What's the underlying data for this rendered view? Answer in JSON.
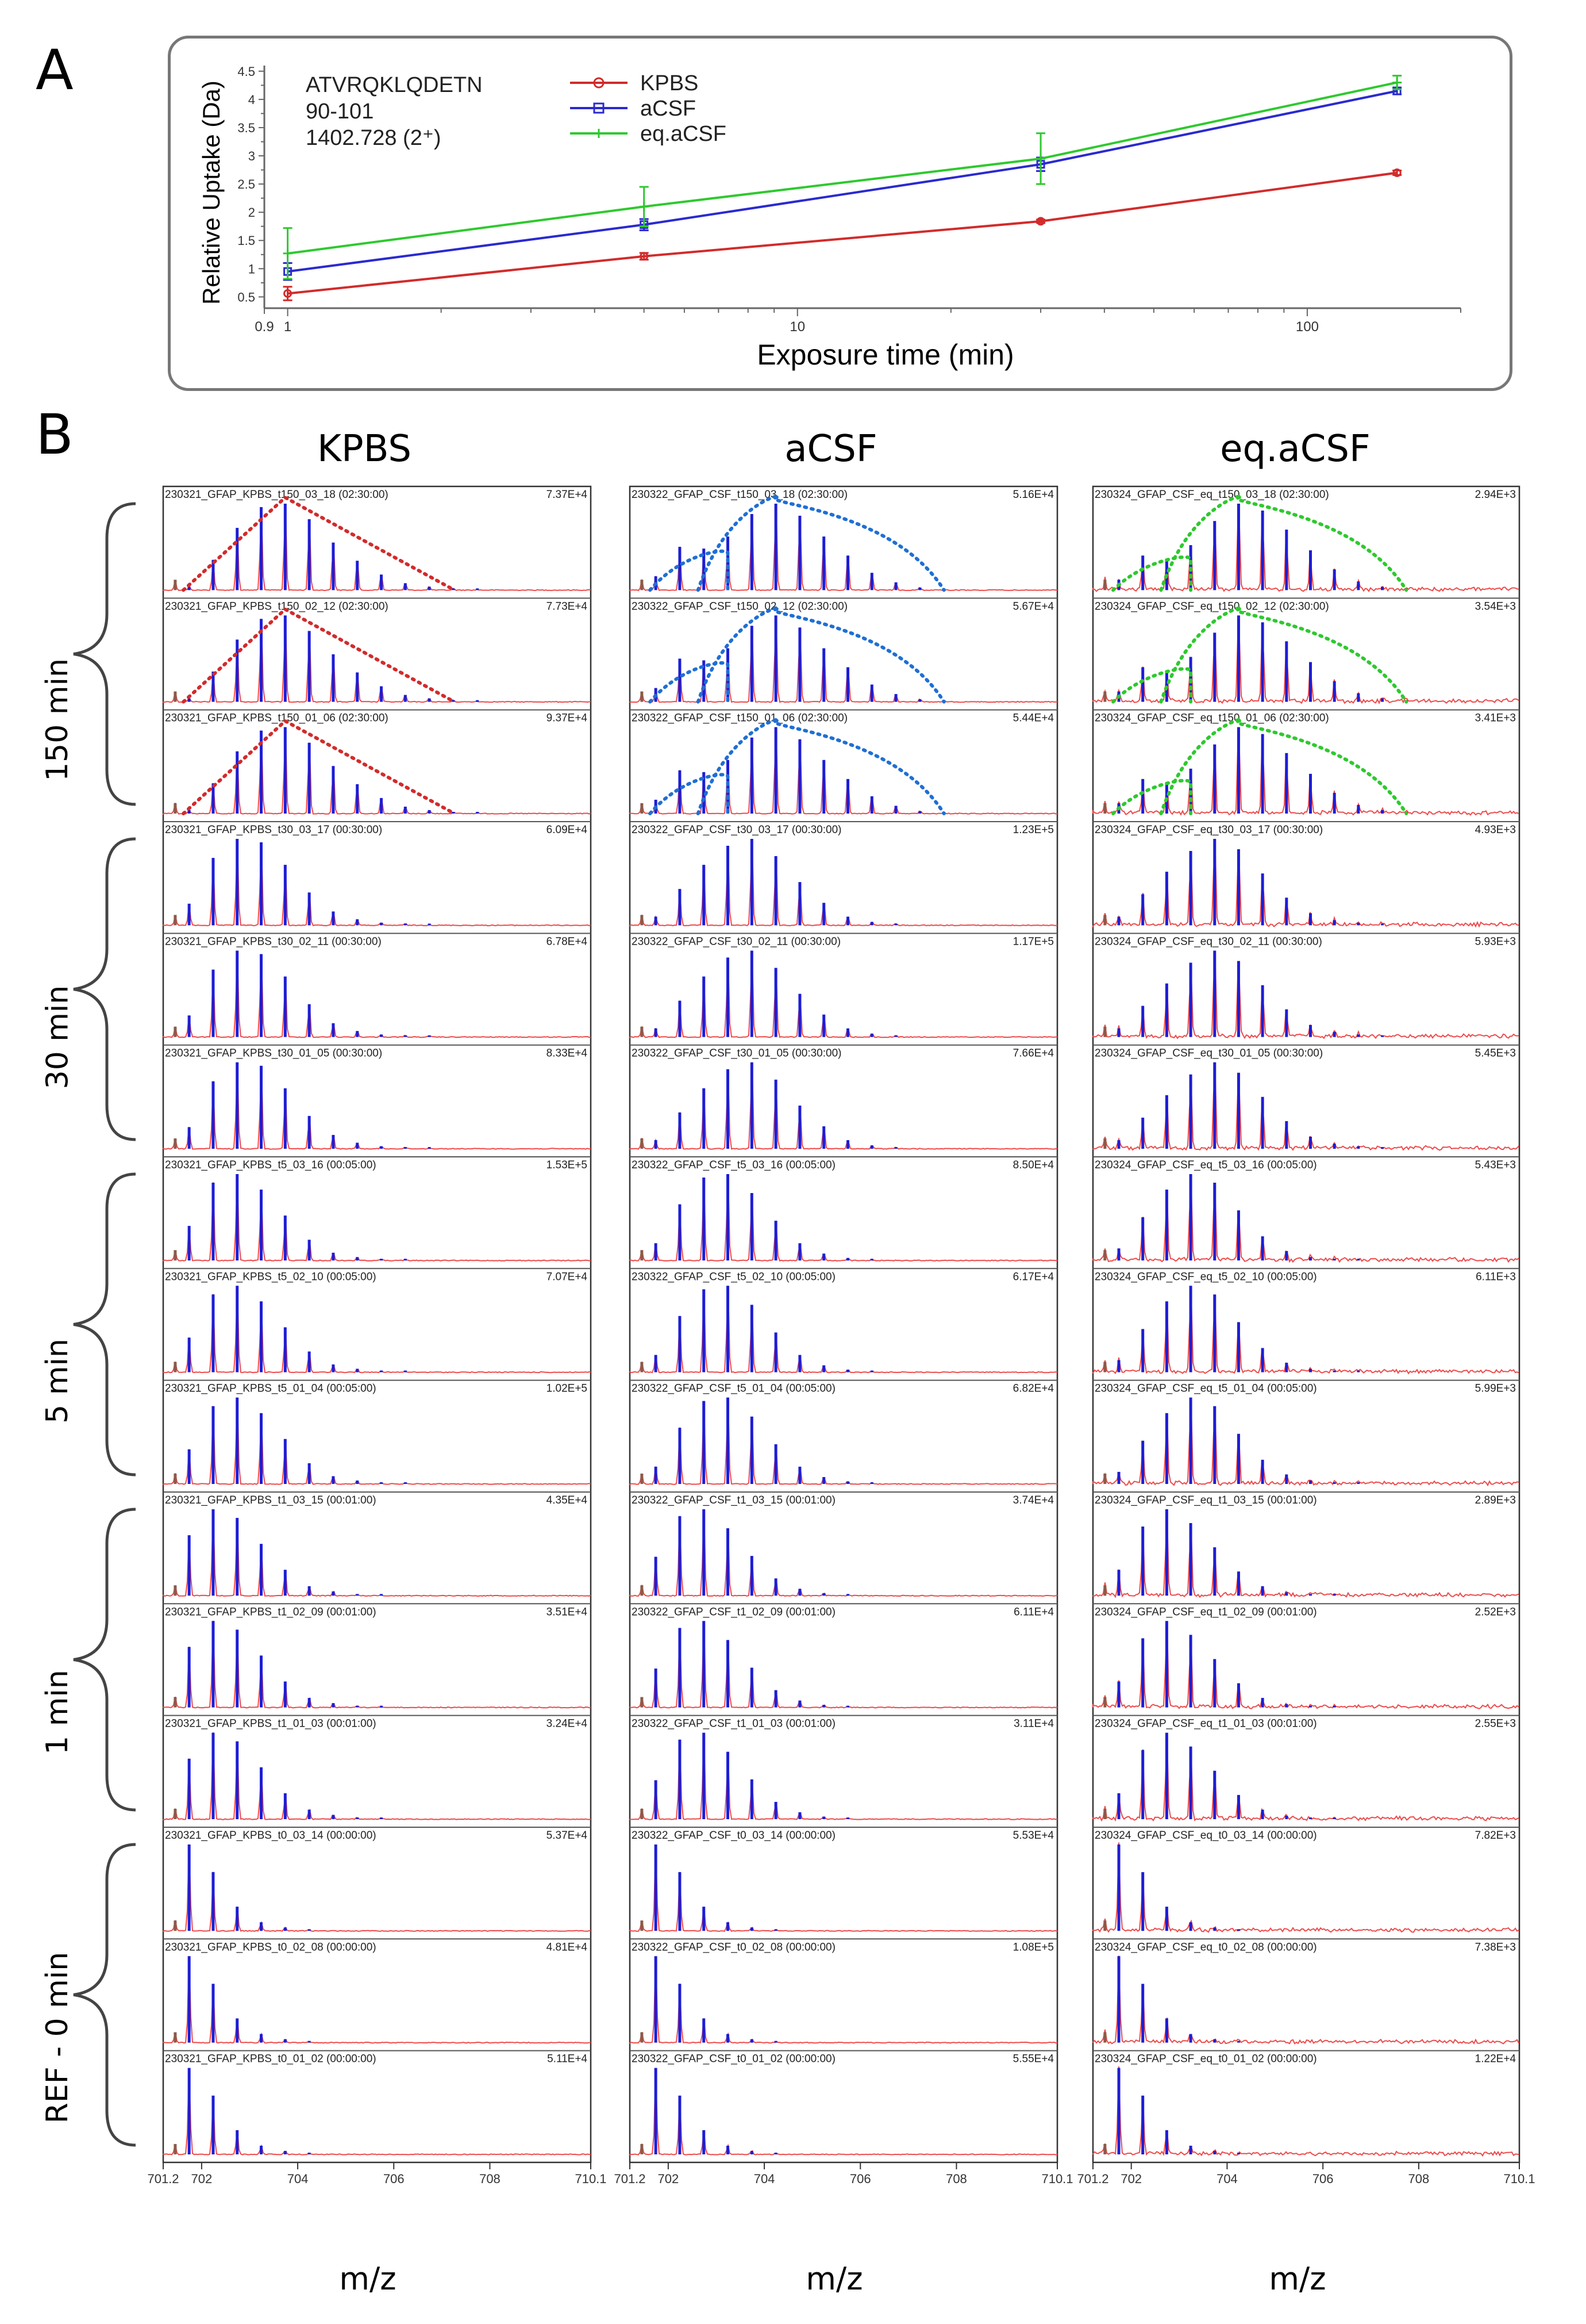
{
  "panel_labels": {
    "a": "A",
    "b": "B"
  },
  "colors": {
    "kpbs": "#d22b2b",
    "acsf": "#2a2ad0",
    "eq_acsf": "#2ec92e",
    "trace": "#ee4a4a",
    "stick": "#1d1dd6",
    "envelope_acsf": "#1f6fd4"
  },
  "panel_a": {
    "peptide_info": [
      "ATVRQKLQDETN",
      "90-101",
      "1402.728 (2⁺)"
    ],
    "xlabel": "Exposure time (min)",
    "ylabel": "Relative Uptake (Da)",
    "x_ticks": [
      "0.9",
      "1",
      "10",
      "100"
    ],
    "y_ticks": [
      "0.5",
      "1",
      "1.5",
      "2",
      "2.5",
      "3",
      "3.5",
      "4",
      "4.5"
    ],
    "legend": [
      "KPBS",
      "aCSF",
      "eq.aCSF"
    ]
  },
  "panel_b": {
    "column_titles": [
      "KPBS",
      "aCSF",
      "eq.aCSF"
    ],
    "row_groups": [
      "150 min",
      "30 min",
      "5 min",
      "1 min",
      "REF - 0  min"
    ],
    "mz_label": "m/z",
    "mz_ticks": [
      "701.2",
      "702",
      "704",
      "706",
      "708",
      "710.1"
    ],
    "spectra": [
      [
        {
          "name": "230321_GFAP_KPBS_t150_03_18 (02:30:00)",
          "intensity": "7.37E+4"
        },
        {
          "name": "230321_GFAP_KPBS_t150_02_12 (02:30:00)",
          "intensity": "7.73E+4"
        },
        {
          "name": "230321_GFAP_KPBS_t150_01_06 (02:30:00)",
          "intensity": "9.37E+4"
        },
        {
          "name": "230321_GFAP_KPBS_t30_03_17 (00:30:00)",
          "intensity": "6.09E+4"
        },
        {
          "name": "230321_GFAP_KPBS_t30_02_11 (00:30:00)",
          "intensity": "6.78E+4"
        },
        {
          "name": "230321_GFAP_KPBS_t30_01_05 (00:30:00)",
          "intensity": "8.33E+4"
        },
        {
          "name": "230321_GFAP_KPBS_t5_03_16 (00:05:00)",
          "intensity": "1.53E+5"
        },
        {
          "name": "230321_GFAP_KPBS_t5_02_10 (00:05:00)",
          "intensity": "7.07E+4"
        },
        {
          "name": "230321_GFAP_KPBS_t5_01_04 (00:05:00)",
          "intensity": "1.02E+5"
        },
        {
          "name": "230321_GFAP_KPBS_t1_03_15 (00:01:00)",
          "intensity": "4.35E+4"
        },
        {
          "name": "230321_GFAP_KPBS_t1_02_09 (00:01:00)",
          "intensity": "3.51E+4"
        },
        {
          "name": "230321_GFAP_KPBS_t1_01_03 (00:01:00)",
          "intensity": "3.24E+4"
        },
        {
          "name": "230321_GFAP_KPBS_t0_03_14 (00:00:00)",
          "intensity": "5.37E+4"
        },
        {
          "name": "230321_GFAP_KPBS_t0_02_08 (00:00:00)",
          "intensity": "4.81E+4"
        },
        {
          "name": "230321_GFAP_KPBS_t0_01_02 (00:00:00)",
          "intensity": "5.11E+4"
        }
      ],
      [
        {
          "name": "230322_GFAP_CSF_t150_03_18 (02:30:00)",
          "intensity": "5.16E+4"
        },
        {
          "name": "230322_GFAP_CSF_t150_02_12 (02:30:00)",
          "intensity": "5.67E+4"
        },
        {
          "name": "230322_GFAP_CSF_t150_01_06 (02:30:00)",
          "intensity": "5.44E+4"
        },
        {
          "name": "230322_GFAP_CSF_t30_03_17 (00:30:00)",
          "intensity": "1.23E+5"
        },
        {
          "name": "230322_GFAP_CSF_t30_02_11 (00:30:00)",
          "intensity": "1.17E+5"
        },
        {
          "name": "230322_GFAP_CSF_t30_01_05 (00:30:00)",
          "intensity": "7.66E+4"
        },
        {
          "name": "230322_GFAP_CSF_t5_03_16 (00:05:00)",
          "intensity": "8.50E+4"
        },
        {
          "name": "230322_GFAP_CSF_t5_02_10 (00:05:00)",
          "intensity": "6.17E+4"
        },
        {
          "name": "230322_GFAP_CSF_t5_01_04 (00:05:00)",
          "intensity": "6.82E+4"
        },
        {
          "name": "230322_GFAP_CSF_t1_03_15 (00:01:00)",
          "intensity": "3.74E+4"
        },
        {
          "name": "230322_GFAP_CSF_t1_02_09 (00:01:00)",
          "intensity": "6.11E+4"
        },
        {
          "name": "230322_GFAP_CSF_t1_01_03 (00:01:00)",
          "intensity": "3.11E+4"
        },
        {
          "name": "230322_GFAP_CSF_t0_03_14 (00:00:00)",
          "intensity": "5.53E+4"
        },
        {
          "name": "230322_GFAP_CSF_t0_02_08 (00:00:00)",
          "intensity": "1.08E+5"
        },
        {
          "name": "230322_GFAP_CSF_t0_01_02 (00:00:00)",
          "intensity": "5.55E+4"
        }
      ],
      [
        {
          "name": "230324_GFAP_CSF_eq_t150_03_18 (02:30:00)",
          "intensity": "2.94E+3"
        },
        {
          "name": "230324_GFAP_CSF_eq_t150_02_12 (02:30:00)",
          "intensity": "3.54E+3"
        },
        {
          "name": "230324_GFAP_CSF_eq_t150_01_06 (02:30:00)",
          "intensity": "3.41E+3"
        },
        {
          "name": "230324_GFAP_CSF_eq_t30_03_17 (00:30:00)",
          "intensity": "4.93E+3"
        },
        {
          "name": "230324_GFAP_CSF_eq_t30_02_11 (00:30:00)",
          "intensity": "5.93E+3"
        },
        {
          "name": "230324_GFAP_CSF_eq_t30_01_05 (00:30:00)",
          "intensity": "5.45E+3"
        },
        {
          "name": "230324_GFAP_CSF_eq_t5_03_16 (00:05:00)",
          "intensity": "5.43E+3"
        },
        {
          "name": "230324_GFAP_CSF_eq_t5_02_10 (00:05:00)",
          "intensity": "6.11E+3"
        },
        {
          "name": "230324_GFAP_CSF_eq_t5_01_04 (00:05:00)",
          "intensity": "5.99E+3"
        },
        {
          "name": "230324_GFAP_CSF_eq_t1_03_15 (00:01:00)",
          "intensity": "2.89E+3"
        },
        {
          "name": "230324_GFAP_CSF_eq_t1_02_09 (00:01:00)",
          "intensity": "2.52E+3"
        },
        {
          "name": "230324_GFAP_CSF_eq_t1_01_03 (00:01:00)",
          "intensity": "2.55E+3"
        },
        {
          "name": "230324_GFAP_CSF_eq_t0_03_14 (00:00:00)",
          "intensity": "7.82E+3"
        },
        {
          "name": "230324_GFAP_CSF_eq_t0_02_08 (00:00:00)",
          "intensity": "7.38E+3"
        },
        {
          "name": "230324_GFAP_CSF_eq_t0_01_02 (00:00:00)",
          "intensity": "1.22E+4"
        }
      ]
    ]
  },
  "chart_data": [
    {
      "type": "line",
      "title": "",
      "xlabel": "Exposure time (min)",
      "ylabel": "Relative Uptake (Da)",
      "x_scale": "log",
      "xlim": [
        0.9,
        200
      ],
      "ylim": [
        0.3,
        4.6
      ],
      "legend_position": "top-left",
      "x": [
        1,
        5,
        30,
        150
      ],
      "series": [
        {
          "name": "KPBS",
          "color": "#d22b2b",
          "values": [
            0.56,
            1.22,
            1.84,
            2.7
          ],
          "errors": [
            0.12,
            0.06,
            0.03,
            0.04
          ]
        },
        {
          "name": "aCSF",
          "color": "#2a2ad0",
          "values": [
            0.95,
            1.78,
            2.85,
            4.15
          ],
          "errors": [
            0.15,
            0.1,
            0.12,
            0.06
          ]
        },
        {
          "name": "eq.aCSF",
          "color": "#2ec92e",
          "values": [
            1.27,
            2.1,
            2.95,
            4.3
          ],
          "errors": [
            0.45,
            0.35,
            0.45,
            0.12
          ]
        }
      ]
    },
    {
      "type": "spectrum",
      "xlabel": "m/z",
      "xlim": [
        701.2,
        710.1
      ],
      "isotope_mz": [
        701.74,
        702.24,
        702.74,
        703.24,
        703.74,
        704.24,
        704.74,
        705.24,
        705.74,
        706.24,
        706.74,
        707.24,
        707.74
      ],
      "profiles": {
        "KPBS": {
          "t150": [
            0.04,
            0.35,
            0.72,
            0.96,
            1.0,
            0.82,
            0.55,
            0.34,
            0.18,
            0.08,
            0.04,
            0.02,
            0.01
          ],
          "t30": [
            0.25,
            0.78,
            1.0,
            0.96,
            0.7,
            0.38,
            0.16,
            0.07,
            0.03,
            0.02,
            0.01,
            0.0,
            0.0
          ],
          "t5": [
            0.4,
            0.9,
            1.0,
            0.82,
            0.52,
            0.24,
            0.09,
            0.04,
            0.02,
            0.01,
            0.0,
            0.0,
            0.0
          ],
          "t1": [
            0.7,
            1.0,
            0.9,
            0.6,
            0.3,
            0.11,
            0.05,
            0.02,
            0.01,
            0.0,
            0.0,
            0.0,
            0.0
          ],
          "t0": [
            1.0,
            0.68,
            0.28,
            0.1,
            0.04,
            0.01,
            0.0,
            0.0,
            0.0,
            0.0,
            0.0,
            0.0,
            0.0
          ]
        },
        "aCSF": {
          "t150": [
            0.16,
            0.5,
            0.48,
            0.62,
            0.88,
            1.0,
            0.86,
            0.62,
            0.4,
            0.2,
            0.09,
            0.03,
            0.01
          ],
          "t30": [
            0.1,
            0.42,
            0.7,
            0.92,
            1.0,
            0.8,
            0.5,
            0.26,
            0.1,
            0.04,
            0.02,
            0.0,
            0.0
          ],
          "t5": [
            0.2,
            0.65,
            0.96,
            1.0,
            0.78,
            0.46,
            0.2,
            0.08,
            0.03,
            0.01,
            0.0,
            0.0,
            0.0
          ],
          "t1": [
            0.45,
            0.92,
            1.0,
            0.78,
            0.46,
            0.2,
            0.08,
            0.03,
            0.01,
            0.0,
            0.0,
            0.0,
            0.0
          ],
          "t0": [
            1.0,
            0.68,
            0.28,
            0.1,
            0.04,
            0.01,
            0.0,
            0.0,
            0.0,
            0.0,
            0.0,
            0.0,
            0.0
          ]
        },
        "eq.aCSF": {
          "t150": [
            0.12,
            0.4,
            0.36,
            0.52,
            0.8,
            1.0,
            0.92,
            0.7,
            0.46,
            0.24,
            0.1,
            0.04,
            0.02
          ],
          "t30": [
            0.1,
            0.36,
            0.62,
            0.86,
            1.0,
            0.88,
            0.6,
            0.32,
            0.14,
            0.06,
            0.03,
            0.01,
            0.0
          ],
          "t5": [
            0.14,
            0.5,
            0.82,
            1.0,
            0.9,
            0.58,
            0.28,
            0.11,
            0.04,
            0.02,
            0.01,
            0.0,
            0.0
          ],
          "t1": [
            0.3,
            0.8,
            1.0,
            0.84,
            0.56,
            0.28,
            0.11,
            0.04,
            0.02,
            0.01,
            0.0,
            0.0,
            0.0
          ],
          "t0": [
            1.0,
            0.68,
            0.28,
            0.1,
            0.04,
            0.01,
            0.0,
            0.0,
            0.0,
            0.0,
            0.0,
            0.0,
            0.0
          ]
        }
      }
    }
  ]
}
